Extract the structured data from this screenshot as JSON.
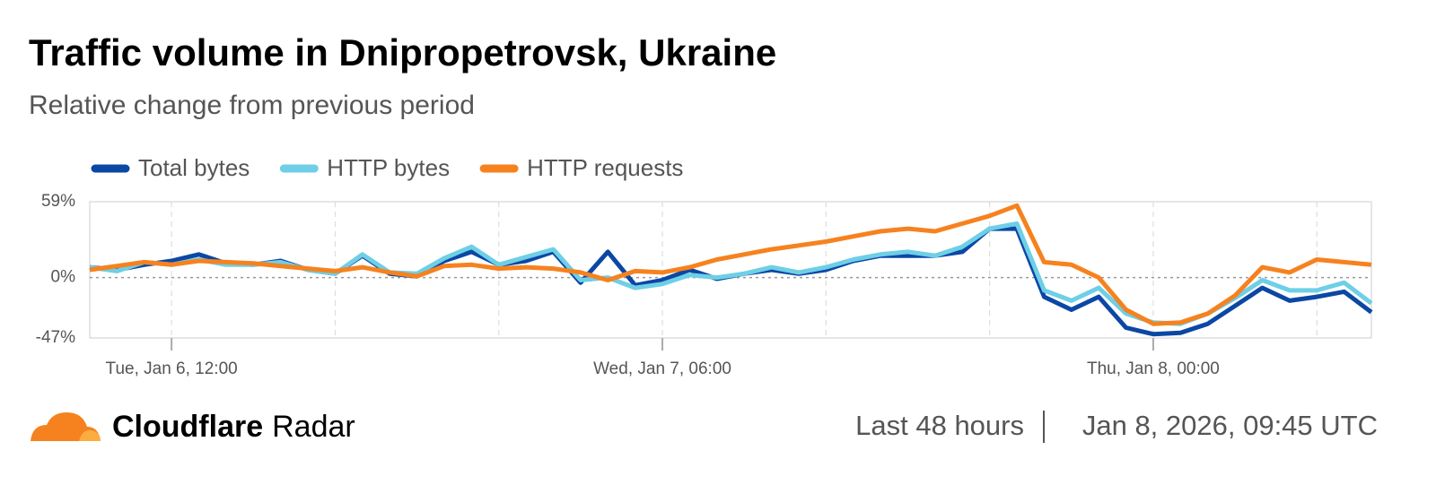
{
  "chart_data": {
    "type": "line",
    "title": "Traffic volume in Dnipropetrovsk, Ukraine",
    "subtitle": "Relative change from previous period",
    "x": [
      "Tue, Jan 6, 09:00",
      "Tue, Jan 6, 10:00",
      "Tue, Jan 6, 11:00",
      "Tue, Jan 6, 12:00",
      "Tue, Jan 6, 13:00",
      "Tue, Jan 6, 14:00",
      "Tue, Jan 6, 15:00",
      "Tue, Jan 6, 16:00",
      "Tue, Jan 6, 17:00",
      "Tue, Jan 6, 18:00",
      "Tue, Jan 6, 19:00",
      "Tue, Jan 6, 20:00",
      "Tue, Jan 6, 21:00",
      "Tue, Jan 6, 22:00",
      "Tue, Jan 6, 23:00",
      "Wed, Jan 7, 00:00",
      "Wed, Jan 7, 01:00",
      "Wed, Jan 7, 02:00",
      "Wed, Jan 7, 03:00",
      "Wed, Jan 7, 04:00",
      "Wed, Jan 7, 05:00",
      "Wed, Jan 7, 06:00",
      "Wed, Jan 7, 07:00",
      "Wed, Jan 7, 08:00",
      "Wed, Jan 7, 09:00",
      "Wed, Jan 7, 10:00",
      "Wed, Jan 7, 11:00",
      "Wed, Jan 7, 12:00",
      "Wed, Jan 7, 13:00",
      "Wed, Jan 7, 14:00",
      "Wed, Jan 7, 15:00",
      "Wed, Jan 7, 16:00",
      "Wed, Jan 7, 17:00",
      "Wed, Jan 7, 18:00",
      "Wed, Jan 7, 19:00",
      "Wed, Jan 7, 20:00",
      "Wed, Jan 7, 21:00",
      "Wed, Jan 7, 22:00",
      "Wed, Jan 7, 23:00",
      "Thu, Jan 8, 00:00",
      "Thu, Jan 8, 01:00",
      "Thu, Jan 8, 02:00",
      "Thu, Jan 8, 03:00",
      "Thu, Jan 8, 04:00",
      "Thu, Jan 8, 05:00",
      "Thu, Jan 8, 06:00",
      "Thu, Jan 8, 07:00",
      "Thu, Jan 8, 08:00"
    ],
    "series": [
      {
        "name": "Total bytes",
        "color": "#0b47a4",
        "values": [
          8,
          6,
          10,
          13,
          18,
          11,
          10,
          13,
          6,
          3,
          17,
          3,
          1,
          13,
          20,
          10,
          13,
          20,
          -4,
          20,
          -6,
          -2,
          6,
          -1,
          3,
          6,
          3,
          6,
          13,
          17,
          17,
          17,
          20,
          38,
          38,
          -15,
          -25,
          -15,
          -39,
          -44,
          -43,
          -36,
          -22,
          -8,
          -18,
          -15,
          -11,
          -27
        ]
      },
      {
        "name": "HTTP bytes",
        "color": "#6ecfe6",
        "values": [
          8,
          5,
          12,
          10,
          14,
          10,
          10,
          12,
          6,
          3,
          18,
          4,
          3,
          15,
          24,
          10,
          16,
          22,
          -2,
          0,
          -8,
          -5,
          2,
          0,
          3,
          8,
          4,
          8,
          14,
          18,
          20,
          17,
          24,
          38,
          42,
          -10,
          -18,
          -8,
          -28,
          -35,
          -36,
          -28,
          -16,
          -2,
          -10,
          -10,
          -4,
          -20
        ]
      },
      {
        "name": "HTTP requests",
        "color": "#f6821f",
        "values": [
          6,
          9,
          12,
          10,
          13,
          12,
          11,
          9,
          7,
          5,
          8,
          4,
          1,
          9,
          10,
          7,
          8,
          7,
          4,
          -2,
          5,
          4,
          8,
          14,
          18,
          22,
          25,
          28,
          32,
          36,
          38,
          36,
          42,
          48,
          56,
          12,
          10,
          0,
          -25,
          -36,
          -35,
          -28,
          -14,
          8,
          4,
          14,
          12,
          10
        ]
      }
    ],
    "xticks": [
      "Tue, Jan 6, 12:00",
      "Wed, Jan 7, 06:00",
      "Thu, Jan 8, 00:00"
    ],
    "ylim": [
      -47,
      59
    ],
    "yticks": [
      {
        "value": -47,
        "label": "-47%"
      },
      {
        "value": 0,
        "label": "0%"
      },
      {
        "value": 59,
        "label": "59%"
      }
    ],
    "grid": true
  },
  "brand": {
    "name": "Cloudflare",
    "product": "Radar"
  },
  "footer": {
    "range": "Last 48 hours",
    "timestamp": "Jan 8, 2026, 09:45 UTC"
  }
}
